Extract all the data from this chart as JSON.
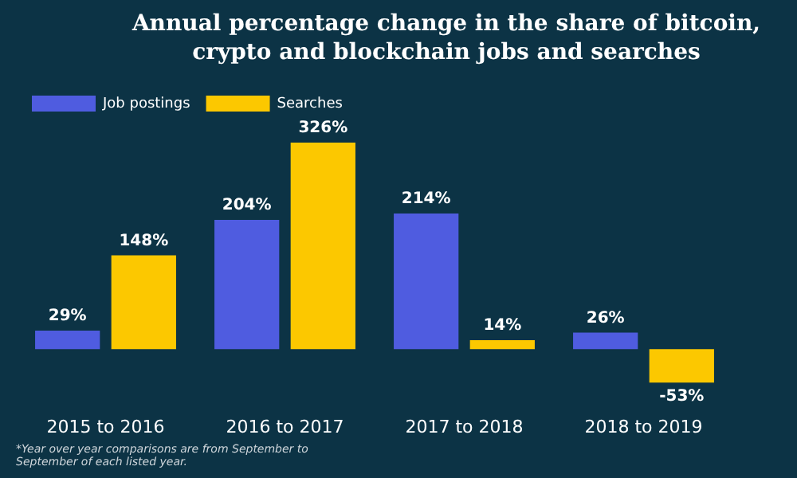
{
  "chart_data": {
    "type": "bar",
    "title": "Annual percentage change in the share of bitcoin, crypto and blockchain jobs and searches",
    "categories": [
      "2015 to 2016",
      "2016 to 2017",
      "2017 to 2018",
      "2018 to 2019"
    ],
    "series": [
      {
        "name": "Job postings",
        "color": "#4f5ce0",
        "values": [
          29,
          204,
          214,
          26
        ],
        "value_labels": [
          "29%",
          "204%",
          "214%",
          "26%"
        ]
      },
      {
        "name": "Searches",
        "color": "#fcc800",
        "values": [
          148,
          326,
          14,
          -53
        ],
        "value_labels": [
          "148%",
          "326%",
          "14%",
          "-53%"
        ]
      }
    ],
    "legend": "top left",
    "grid": false,
    "annotations": [
      "*Year over year comparisons are from September to September of each listed year."
    ]
  }
}
